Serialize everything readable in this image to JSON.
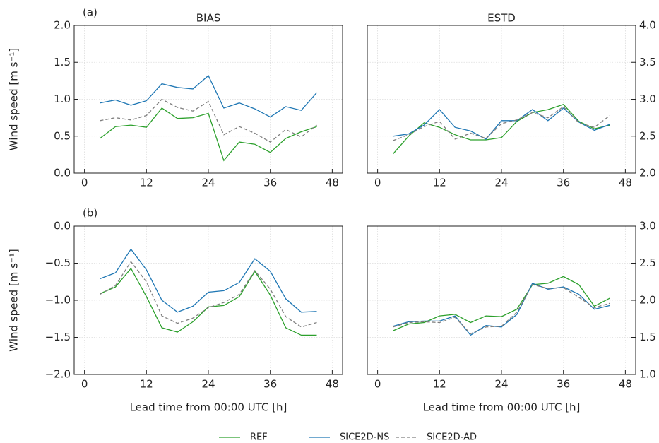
{
  "chart_data": [
    {
      "type": "line",
      "panel_label": "(a)",
      "title": "BIAS",
      "ylabel": "Wind speed [m s⁻¹]",
      "yaxis": "left",
      "x": [
        3,
        6,
        9,
        12,
        15,
        18,
        21,
        24,
        27,
        30,
        33,
        36,
        39,
        42,
        45
      ],
      "xlim": [
        -2,
        50
      ],
      "xticks": [
        0,
        12,
        24,
        36,
        48
      ],
      "ylim": [
        0,
        2
      ],
      "yticks": [
        {
          "value": 0,
          "label": "0.0"
        },
        0.5,
        {
          "value": 1,
          "label": "1.0"
        },
        1.5,
        {
          "value": 2,
          "label": "2.0"
        }
      ],
      "grid": true,
      "series": [
        {
          "name": "REF",
          "color": "#2ca02c",
          "values": [
            0.47,
            0.63,
            0.65,
            0.62,
            0.88,
            0.74,
            0.75,
            0.81,
            0.17,
            0.42,
            0.39,
            0.28,
            0.47,
            0.56,
            0.63
          ]
        },
        {
          "name": "SICE2D-NS",
          "color": "#1f77b4",
          "values": [
            0.95,
            0.99,
            0.92,
            0.98,
            1.21,
            1.16,
            1.14,
            1.32,
            0.88,
            0.95,
            0.87,
            0.76,
            0.9,
            0.85,
            1.09
          ]
        },
        {
          "name": "SICE2D-AD",
          "color": "#7f7f7f",
          "dashed": true,
          "values": [
            0.71,
            0.75,
            0.72,
            0.78,
            1.0,
            0.89,
            0.84,
            0.97,
            0.52,
            0.63,
            0.54,
            0.42,
            0.59,
            0.49,
            0.65
          ]
        }
      ]
    },
    {
      "type": "line",
      "title": "ESTD",
      "yaxis": "right",
      "x": [
        3,
        6,
        9,
        12,
        15,
        18,
        21,
        24,
        27,
        30,
        33,
        36,
        39,
        42,
        45
      ],
      "xlim": [
        -2,
        50
      ],
      "xticks": [
        0,
        12,
        24,
        36,
        48
      ],
      "ylim": [
        2,
        4
      ],
      "yticks": [
        {
          "value": 2,
          "label": "2.0"
        },
        2.5,
        {
          "value": 3,
          "label": "3.0"
        },
        3.5,
        {
          "value": 4,
          "label": "4.0"
        }
      ],
      "grid": true,
      "series": [
        {
          "name": "REF",
          "color": "#2ca02c",
          "values": [
            2.26,
            2.5,
            2.68,
            2.62,
            2.52,
            2.45,
            2.45,
            2.48,
            2.7,
            2.82,
            2.86,
            2.93,
            2.7,
            2.6,
            2.65
          ]
        },
        {
          "name": "SICE2D-NS",
          "color": "#1f77b4",
          "values": [
            2.5,
            2.53,
            2.65,
            2.86,
            2.62,
            2.57,
            2.46,
            2.71,
            2.71,
            2.86,
            2.71,
            2.88,
            2.69,
            2.58,
            2.66
          ]
        },
        {
          "name": "SICE2D-AD",
          "color": "#7f7f7f",
          "dashed": true,
          "values": [
            2.44,
            2.52,
            2.63,
            2.7,
            2.46,
            2.54,
            2.47,
            2.67,
            2.72,
            2.82,
            2.75,
            2.9,
            2.68,
            2.62,
            2.78
          ]
        }
      ]
    },
    {
      "type": "line",
      "panel_label": "(b)",
      "ylabel": "Wind speed [m s⁻¹]",
      "xlabel": "Lead time from 00:00 UTC [h]",
      "yaxis": "left",
      "x": [
        3,
        6,
        9,
        12,
        15,
        18,
        21,
        24,
        27,
        30,
        33,
        36,
        39,
        42,
        45
      ],
      "xlim": [
        -2,
        50
      ],
      "xticks": [
        0,
        12,
        24,
        36,
        48
      ],
      "ylim": [
        -2,
        0
      ],
      "yticks": [
        {
          "value": -2,
          "label": "−2.0"
        },
        {
          "value": -1.5,
          "label": "−1.5"
        },
        {
          "value": -1,
          "label": "−1.0"
        },
        {
          "value": -0.5,
          "label": "−0.5"
        },
        {
          "value": 0,
          "label": "0.0"
        }
      ],
      "grid": true,
      "series": [
        {
          "name": "REF",
          "color": "#2ca02c",
          "values": [
            -0.91,
            -0.82,
            -0.57,
            -0.95,
            -1.37,
            -1.43,
            -1.29,
            -1.09,
            -1.07,
            -0.95,
            -0.61,
            -0.93,
            -1.37,
            -1.47,
            -1.47
          ]
        },
        {
          "name": "SICE2D-NS",
          "color": "#1f77b4",
          "values": [
            -0.71,
            -0.63,
            -0.31,
            -0.59,
            -1.0,
            -1.16,
            -1.08,
            -0.89,
            -0.87,
            -0.76,
            -0.44,
            -0.61,
            -0.98,
            -1.16,
            -1.15
          ]
        },
        {
          "name": "SICE2D-AD",
          "color": "#7f7f7f",
          "dashed": true,
          "values": [
            -0.92,
            -0.8,
            -0.48,
            -0.75,
            -1.21,
            -1.31,
            -1.24,
            -1.1,
            -1.03,
            -0.92,
            -0.6,
            -0.85,
            -1.22,
            -1.36,
            -1.3
          ]
        }
      ]
    },
    {
      "type": "line",
      "xlabel": "Lead time from 00:00 UTC [h]",
      "yaxis": "right",
      "x": [
        3,
        6,
        9,
        12,
        15,
        18,
        21,
        24,
        27,
        30,
        33,
        36,
        39,
        42,
        45
      ],
      "xlim": [
        -2,
        50
      ],
      "xticks": [
        0,
        12,
        24,
        36,
        48
      ],
      "ylim": [
        1,
        3
      ],
      "yticks": [
        {
          "value": 1,
          "label": "1.0"
        },
        1.5,
        {
          "value": 2,
          "label": "2.0"
        },
        2.5,
        {
          "value": 3,
          "label": "3.0"
        }
      ],
      "grid": true,
      "series": [
        {
          "name": "REF",
          "color": "#2ca02c",
          "values": [
            1.59,
            1.68,
            1.7,
            1.79,
            1.81,
            1.7,
            1.79,
            1.78,
            1.88,
            2.21,
            2.23,
            2.32,
            2.21,
            1.92,
            2.03
          ]
        },
        {
          "name": "SICE2D-NS",
          "color": "#1f77b4",
          "values": [
            1.65,
            1.71,
            1.72,
            1.72,
            1.79,
            1.53,
            1.66,
            1.64,
            1.81,
            2.23,
            2.15,
            2.18,
            2.08,
            1.88,
            1.93
          ]
        },
        {
          "name": "SICE2D-AD",
          "color": "#7f7f7f",
          "dashed": true,
          "values": [
            1.64,
            1.7,
            1.71,
            1.7,
            1.77,
            1.55,
            1.64,
            1.65,
            1.84,
            2.21,
            2.16,
            2.17,
            2.04,
            1.9,
            1.96
          ]
        }
      ]
    }
  ]
}
